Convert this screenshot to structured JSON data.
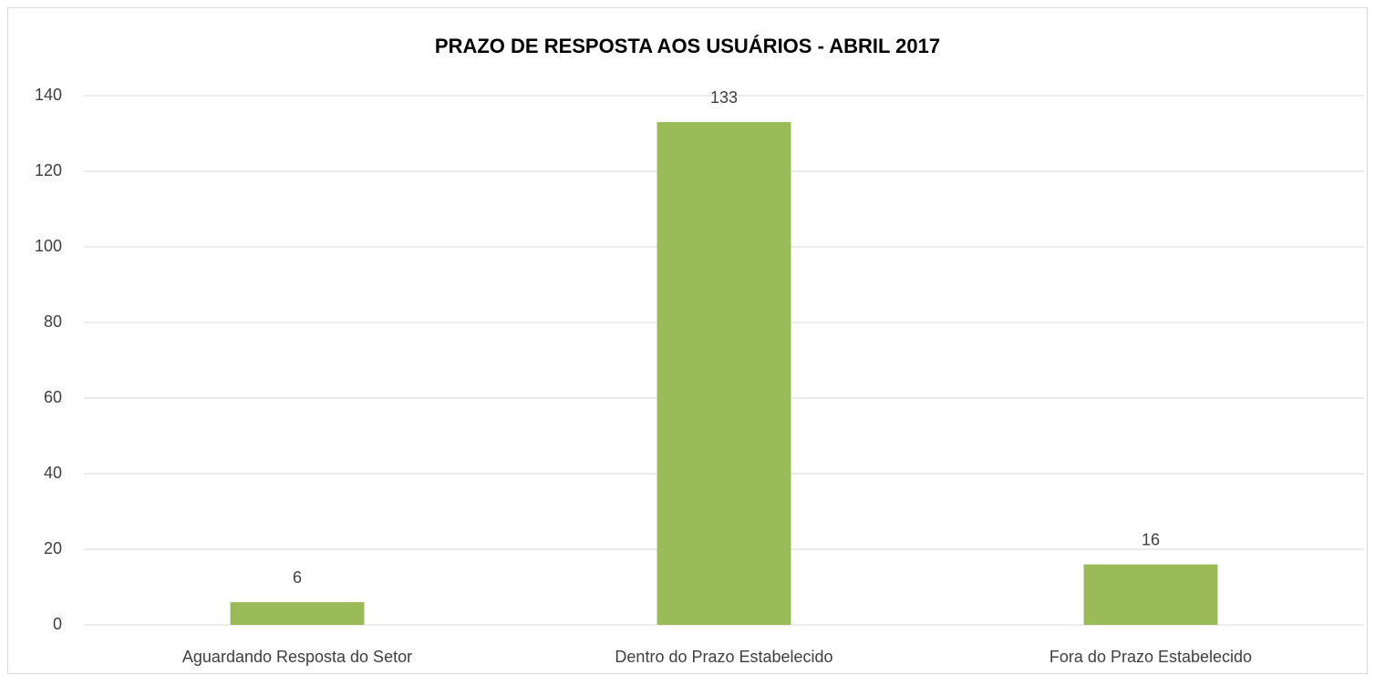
{
  "chart_data": {
    "type": "bar",
    "title": "PRAZO DE RESPOSTA AOS USUÁRIOS - ABRIL 2017",
    "categories": [
      "Aguardando Resposta do Setor",
      "Dentro do Prazo Estabelecido",
      "Fora do Prazo Estabelecido"
    ],
    "values": [
      6,
      133,
      16
    ],
    "color": "#9bbb59",
    "ylim": [
      0,
      140
    ],
    "yticks": [
      0,
      20,
      40,
      60,
      80,
      100,
      120,
      140
    ],
    "grid": true,
    "data_labels": true
  }
}
